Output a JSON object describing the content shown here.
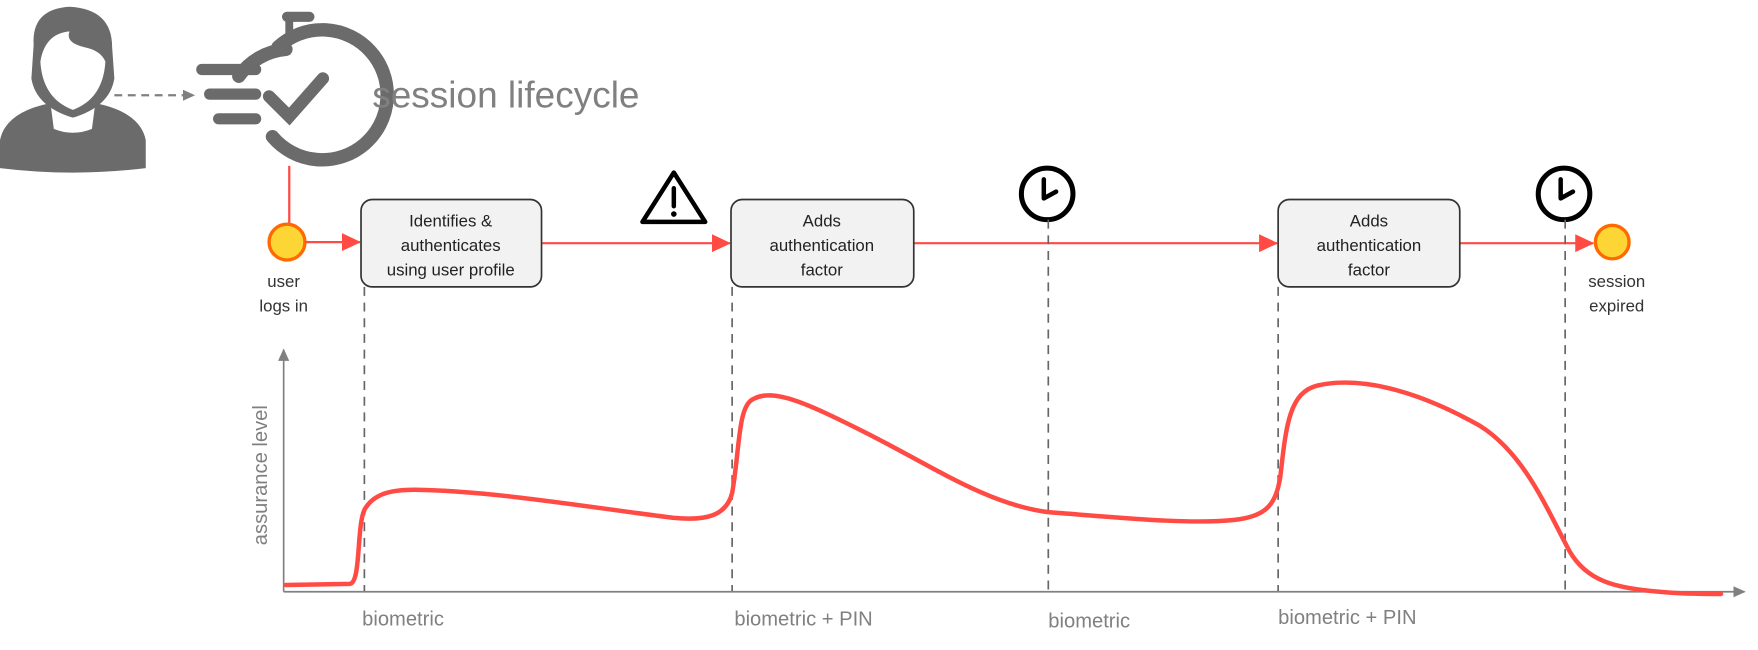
{
  "title": "session lifecycle",
  "events": {
    "start": {
      "line1": "user",
      "line2": "logs in"
    },
    "end": {
      "line1": "session",
      "line2": "expired"
    }
  },
  "steps": [
    {
      "lines": [
        "Identifies &",
        "authenticates",
        "using user profile"
      ]
    },
    {
      "lines": [
        "Adds",
        "authentication",
        "factor"
      ]
    },
    {
      "lines": [
        "Adds",
        "authentication",
        "factor"
      ]
    }
  ],
  "markers": [
    "warning-icon",
    "clock-icon",
    "clock-icon"
  ],
  "axis": {
    "y_label": "assurance level"
  },
  "phase_labels": [
    "biometric",
    "biometric + PIN",
    "biometric",
    "biometric + PIN"
  ],
  "colors": {
    "flow": "#ff4b44",
    "event_fill": "#fdd535",
    "event_stroke": "#ff6a00",
    "icon_gray": "#6b6b6b",
    "box_fill": "#f2f2f2"
  }
}
